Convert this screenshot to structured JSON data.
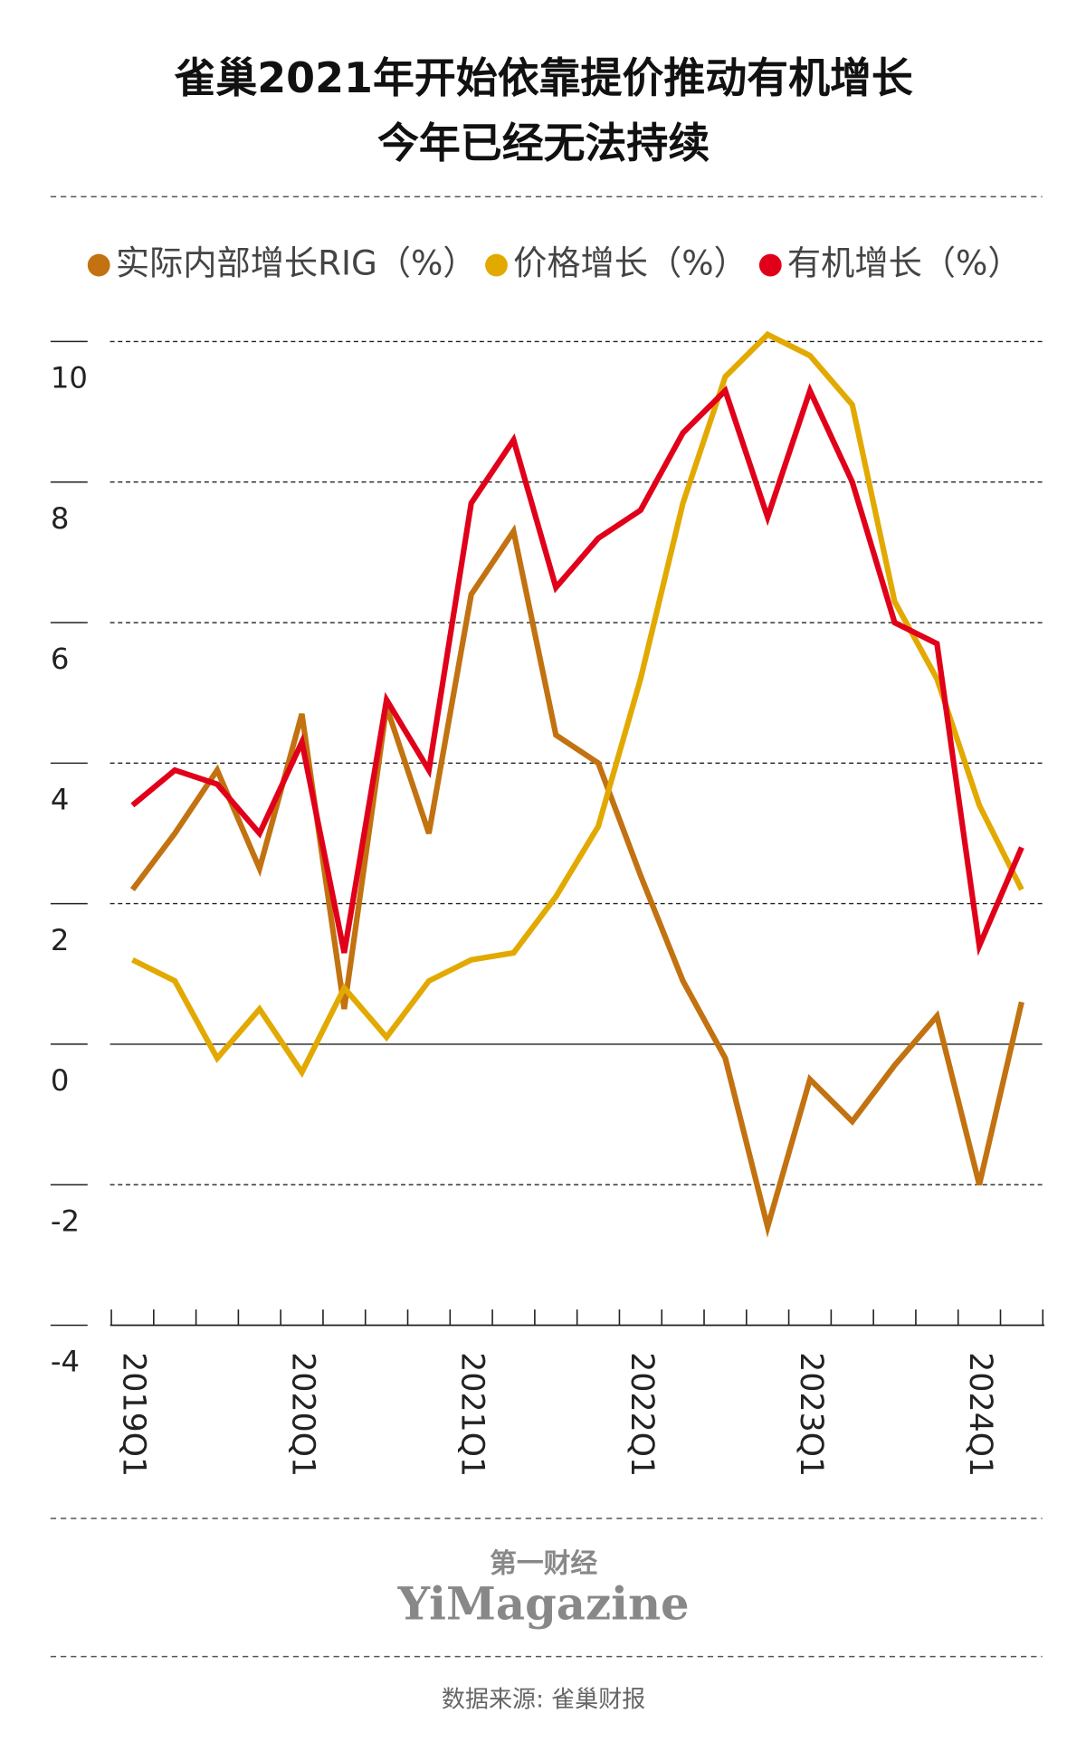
{
  "chart_data": {
    "type": "line",
    "title": [
      "雀巢2021年开始依靠提价推动有机增长",
      "今年已经无法持续"
    ],
    "categories": [
      "2019Q1",
      null,
      null,
      null,
      "2020Q1",
      null,
      null,
      null,
      "2021Q1",
      null,
      null,
      null,
      "2022Q1",
      null,
      null,
      null,
      "2023Q1",
      null,
      null,
      null,
      "2024Q1",
      null
    ],
    "series": [
      {
        "name": "实际内部增长RIG（%）",
        "color": "#c27210",
        "values": [
          2.2,
          3.0,
          3.9,
          2.5,
          4.7,
          0.5,
          4.8,
          3.0,
          6.4,
          7.3,
          4.4,
          4.0,
          2.4,
          0.9,
          -0.2,
          -2.6,
          -0.5,
          -1.1,
          -0.3,
          0.4,
          -2.0,
          0.6
        ]
      },
      {
        "name": "价格增长（%）",
        "color": "#e2a900",
        "values": [
          1.2,
          0.9,
          -0.2,
          0.5,
          -0.4,
          0.8,
          0.1,
          0.9,
          1.2,
          1.3,
          2.1,
          3.1,
          5.2,
          7.7,
          9.5,
          10.1,
          9.8,
          9.1,
          6.3,
          5.2,
          3.4,
          2.2
        ]
      },
      {
        "name": "有机增长（%）",
        "color": "#e1001a",
        "values": [
          3.4,
          3.9,
          3.7,
          3.0,
          4.3,
          1.3,
          4.9,
          3.9,
          7.7,
          8.6,
          6.5,
          7.2,
          7.6,
          8.7,
          9.3,
          7.5,
          9.3,
          8.0,
          6.0,
          5.7,
          1.4,
          2.8
        ]
      }
    ],
    "ylim": [
      -4,
      10
    ],
    "yticks": [
      -4,
      -2,
      0,
      2,
      4,
      6,
      8,
      10
    ],
    "grid": true
  },
  "logo": {
    "cn": "第一财经",
    "en": "YiMagazine"
  },
  "source": "数据来源: 雀巢财报"
}
